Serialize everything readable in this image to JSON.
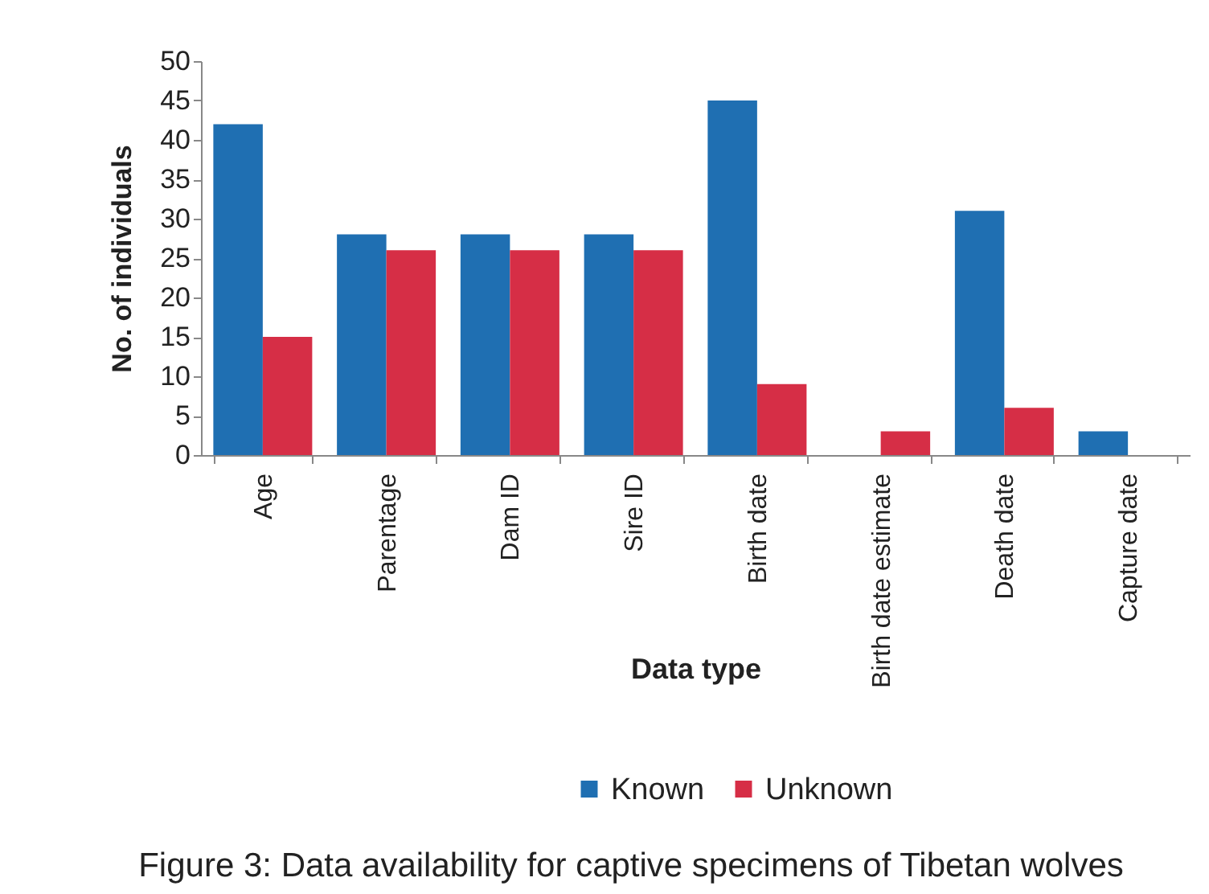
{
  "chart_data": {
    "type": "bar",
    "title": "Figure 3: Data availability for captive specimens of Tibetan wolves",
    "xlabel": "Data type",
    "ylabel": "No. of individuals",
    "categories": [
      "Age",
      "Parentage",
      "Dam ID",
      "Sire ID",
      "Birth date",
      "Birth date estimate",
      "Death date",
      "Capture date"
    ],
    "series": [
      {
        "name": "Known",
        "color": "#1f6fb2",
        "values": [
          42,
          28,
          28,
          28,
          45,
          0,
          31,
          3
        ]
      },
      {
        "name": "Unknown",
        "color": "#d62e46",
        "values": [
          15,
          26,
          26,
          26,
          9,
          3,
          6,
          0
        ]
      }
    ],
    "ylim": [
      0,
      50
    ],
    "yticks": [
      0,
      5,
      10,
      15,
      20,
      25,
      30,
      35,
      40,
      45,
      50
    ],
    "grid": false,
    "legend": "bottom"
  }
}
